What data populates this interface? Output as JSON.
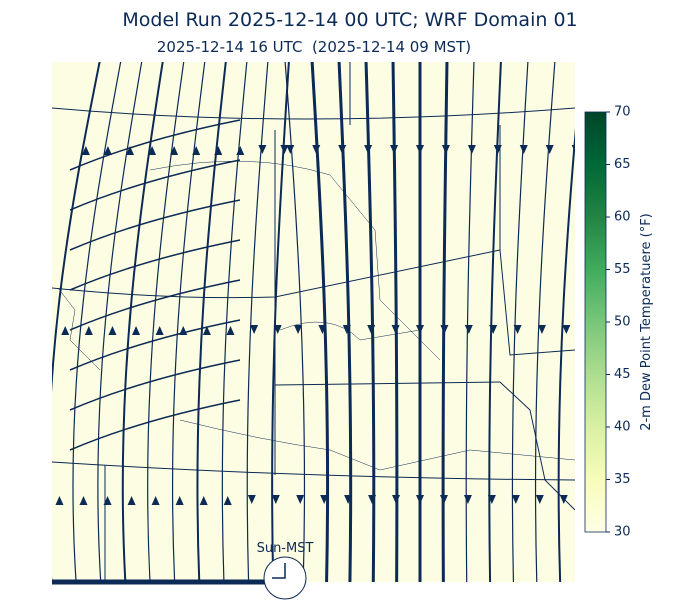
{
  "header": {
    "title": "Model Run 2025-12-14 00 UTC; WRF Domain 01",
    "subtitle": "2025-12-14 16 UTC  (2025-12-14 09 MST)"
  },
  "colorbar": {
    "label": "2-m Dew Point Temperatuere (°F)",
    "range": [
      30,
      70
    ],
    "ticks": [
      30,
      35,
      40,
      45,
      50,
      55,
      60,
      65,
      70
    ],
    "colors": [
      "#ffffe5",
      "#f7fcb9",
      "#d9f0a3",
      "#addd8e",
      "#78c679",
      "#41ab5d",
      "#238443",
      "#006837",
      "#004529"
    ]
  },
  "clock": {
    "label": "Sun-MST"
  }
}
